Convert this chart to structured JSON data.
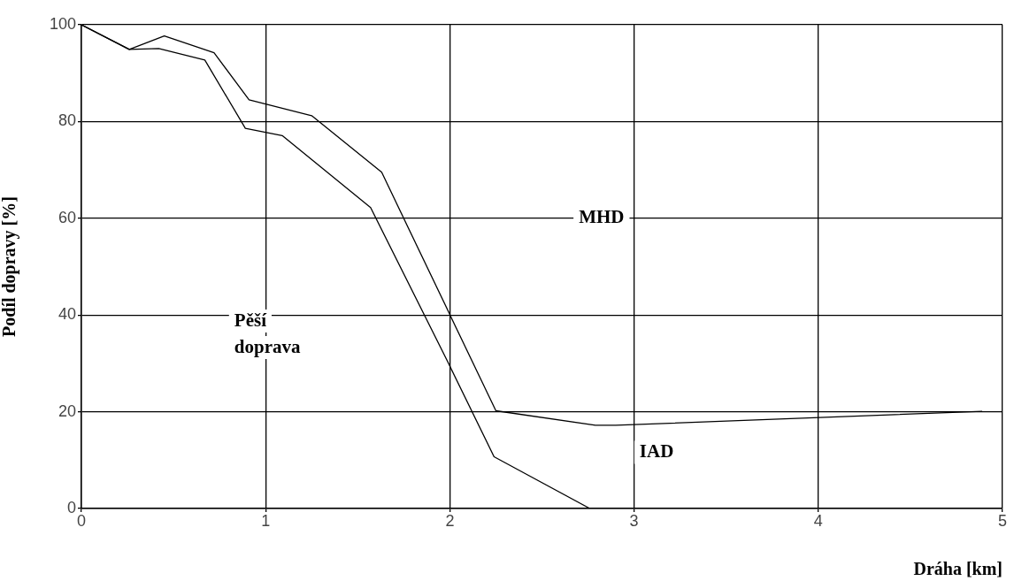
{
  "chart_data": {
    "type": "line",
    "xlabel": "Dráha [km]",
    "ylabel": "Podíl dopravy [%]",
    "xlim": [
      0,
      5
    ],
    "xticks": [
      0,
      1,
      2,
      3,
      4,
      5
    ],
    "ylim": [
      0,
      100
    ],
    "yticks": [
      0,
      20,
      40,
      60,
      80,
      100
    ],
    "grid": true,
    "legend": false,
    "marker": "none",
    "line_style": "solid",
    "series": [
      {
        "color": "#000000",
        "x": [
          0,
          0.26,
          0.45,
          0.72,
          0.91,
          1.25,
          1.63,
          2.25,
          2.79,
          2.9,
          4.89
        ],
        "values": [
          100,
          94.9,
          97.7,
          94.2,
          84.5,
          81.2,
          69.5,
          20.2,
          17.2,
          17.2,
          20.1
        ]
      },
      {
        "color": "#000000",
        "x": [
          0,
          0.26,
          0.42,
          0.67,
          0.89,
          1.09,
          1.57,
          1.98,
          2.24,
          2.76
        ],
        "values": [
          100,
          94.9,
          95.1,
          92.7,
          78.6,
          77.1,
          62.2,
          31,
          10.7,
          0
        ]
      }
    ],
    "annotations": [
      "MHD",
      "Pěší doprava",
      "IAD"
    ]
  }
}
